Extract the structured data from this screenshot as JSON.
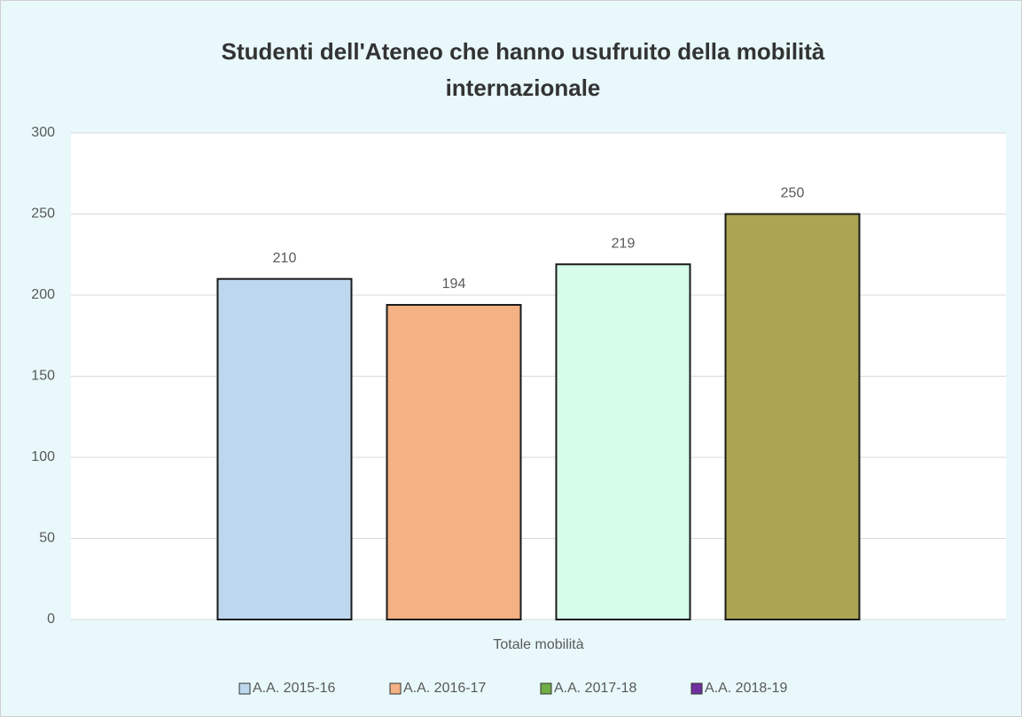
{
  "chart_data": {
    "type": "bar",
    "title": "Studenti dell'Ateneo che hanno usufruito della mobilità internazionale",
    "categories": [
      "Totale mobilità"
    ],
    "series": [
      {
        "name": "A.A. 2015-16",
        "color": "#bdd7ee",
        "legend_color": "#bdd7ee",
        "values": [
          210
        ]
      },
      {
        "name": "A.A. 2016-17",
        "color": "#f4b183",
        "legend_color": "#f4b183",
        "values": [
          194
        ]
      },
      {
        "name": "A.A. 2017-18",
        "color": "#d5fde9",
        "legend_color": "#70ad47",
        "values": [
          219
        ]
      },
      {
        "name": "A.A. 2018-19",
        "color": "#aba553",
        "legend_color": "#7030a0",
        "values": [
          250
        ]
      }
    ],
    "ylim": [
      0,
      300
    ],
    "yticks": [
      0,
      50,
      100,
      150,
      200,
      250,
      300
    ],
    "grid": true,
    "legend": "bottom"
  }
}
